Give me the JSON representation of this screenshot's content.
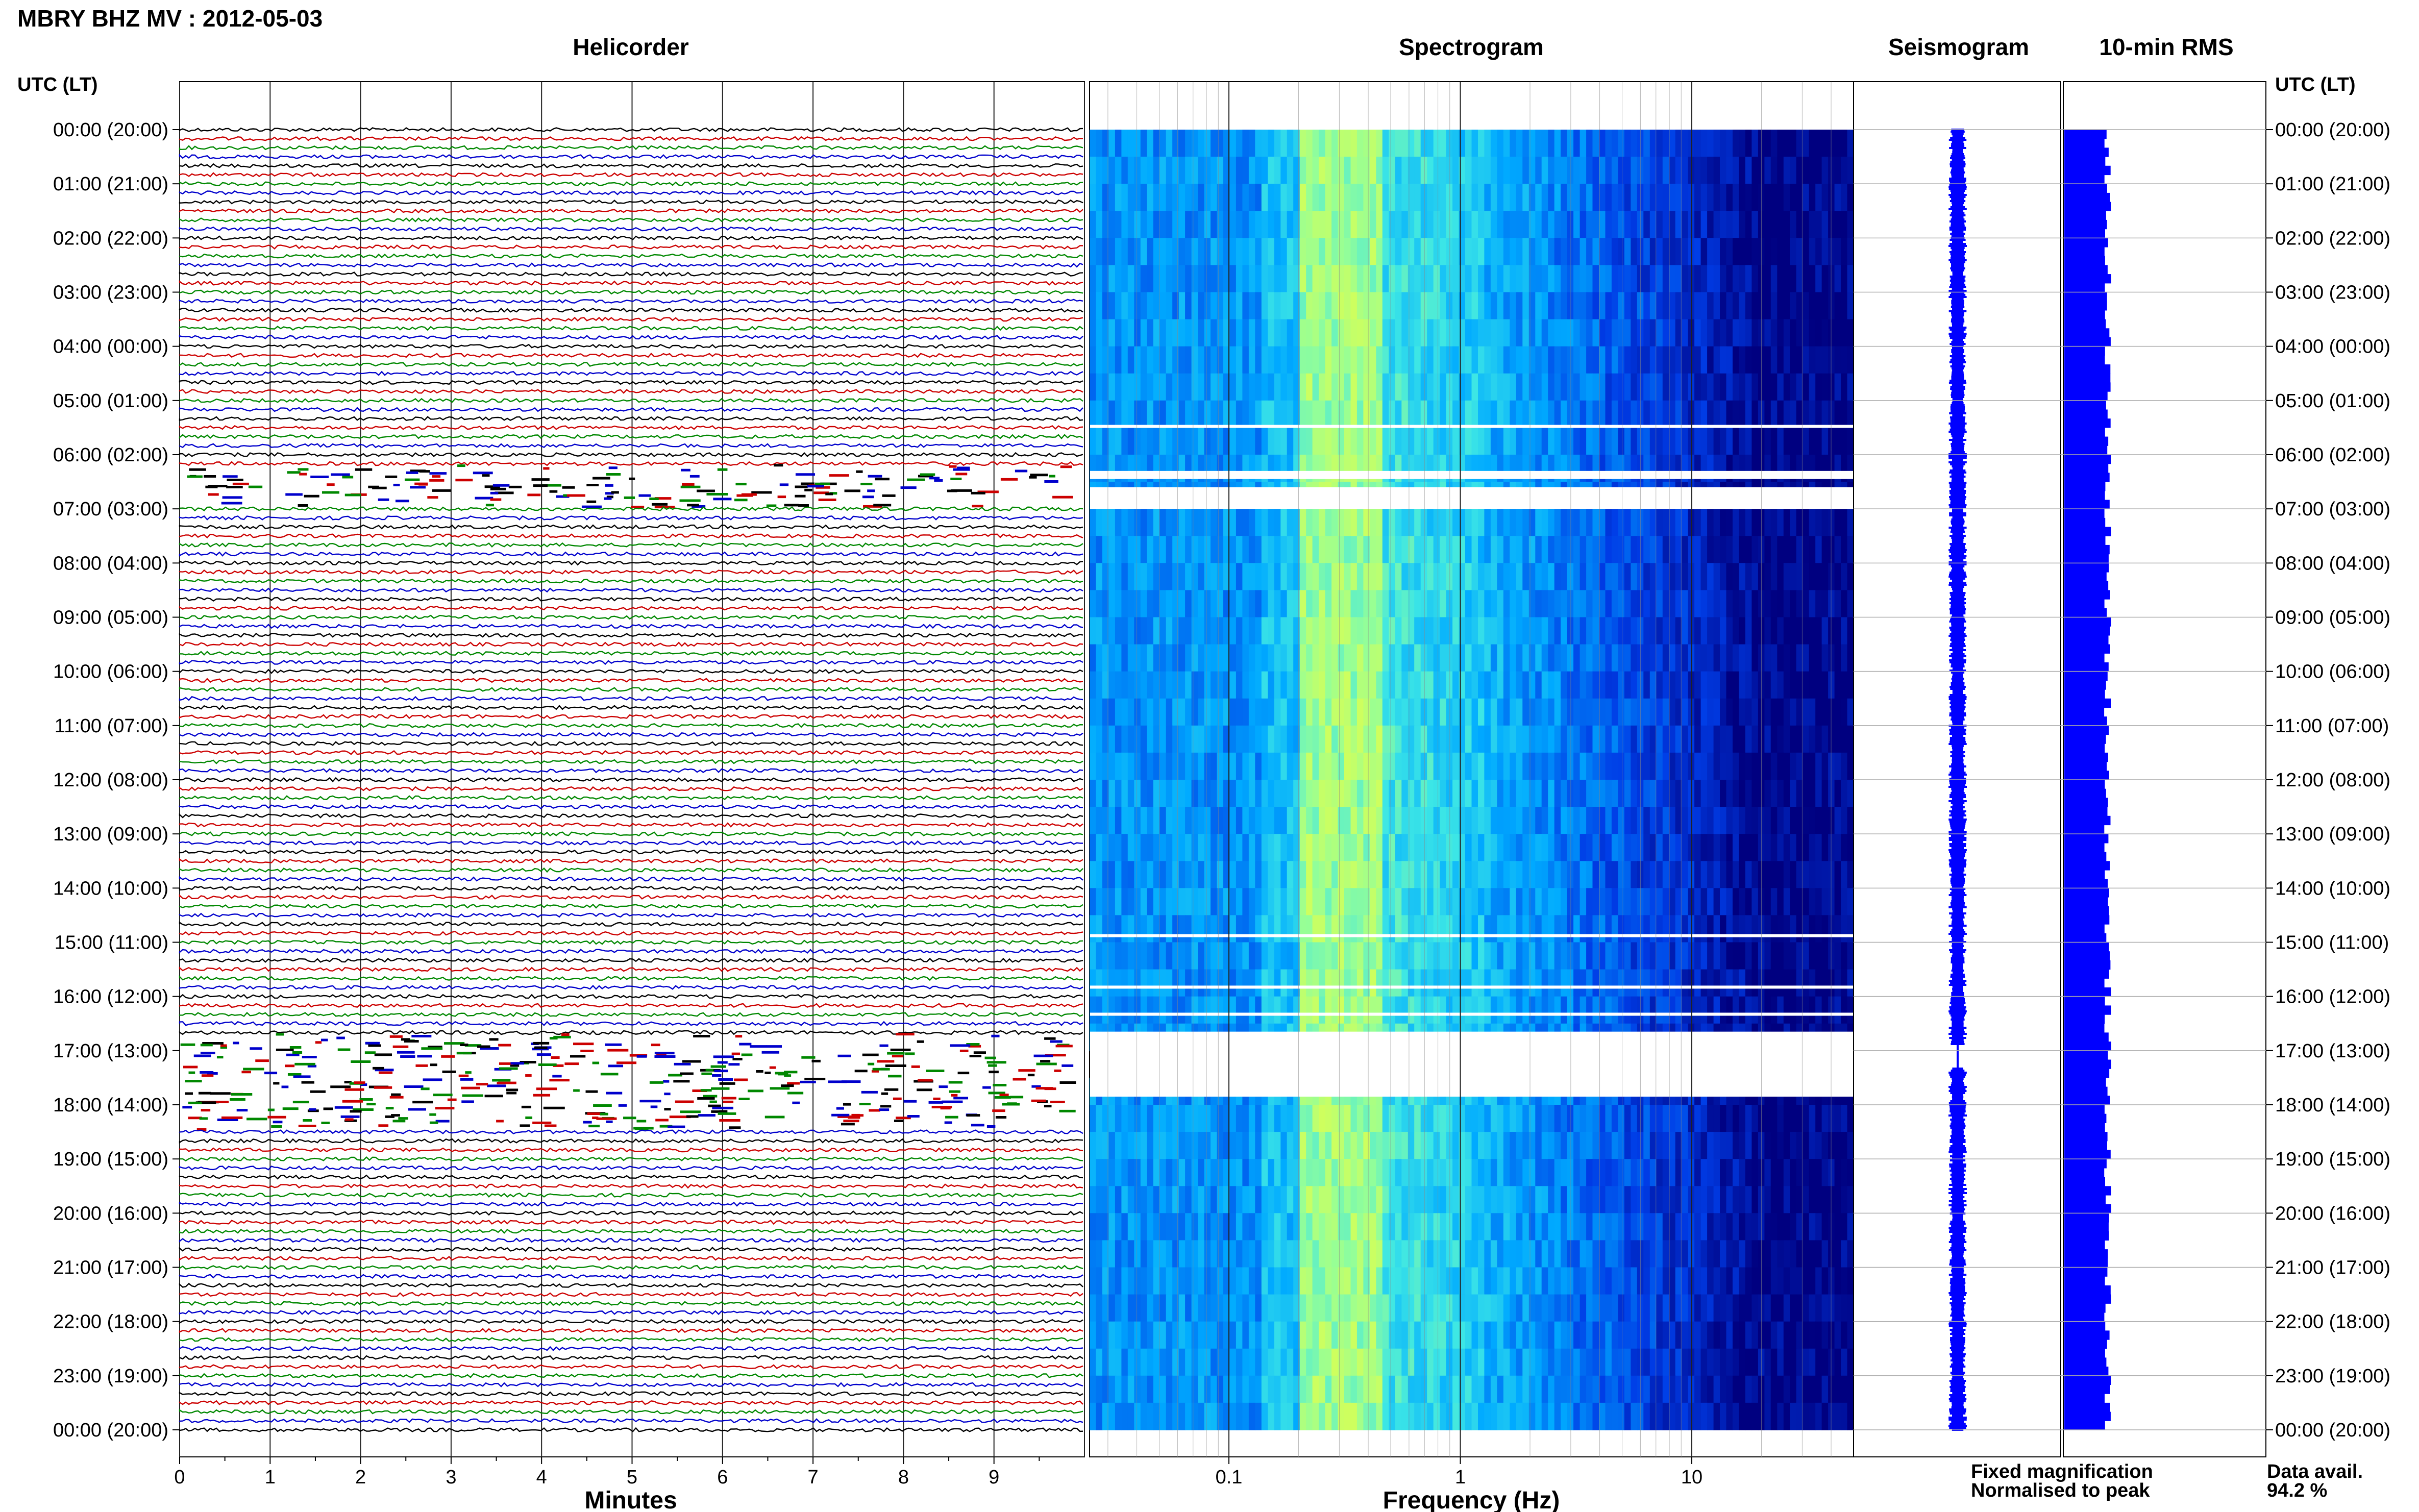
{
  "header": {
    "title": "MBRY BHZ MV : 2012-05-03",
    "panel_titles": {
      "helicorder": "Helicorder",
      "spectrogram": "Spectrogram",
      "seismogram": "Seismogram",
      "rms": "10-min RMS"
    },
    "left_axis_title": "UTC (LT)",
    "right_axis_title": "UTC (LT)"
  },
  "footer": {
    "helicorder_xlabel": "Minutes",
    "spectrogram_xlabel": "Frequency (Hz)",
    "legend_fixed": "Fixed magnification",
    "legend_normalised": "Normalised to peak",
    "data_avail_label": "Data avail.",
    "data_avail_value": "94.2 %"
  },
  "colors": {
    "fixed_magnification": "#0000ff",
    "normalised_to_peak": "#ff0000",
    "trace_palette": [
      "#000000",
      "#cc0000",
      "#008800",
      "#0000cc"
    ],
    "spectrogram_low": "#000080",
    "spectrogram_high": "#b8ff60"
  },
  "chart_data": {
    "type": "heatmap",
    "time_labels": [
      "00:00 (20:00)",
      "01:00 (21:00)",
      "02:00 (22:00)",
      "03:00 (23:00)",
      "04:00 (00:00)",
      "05:00 (01:00)",
      "06:00 (02:00)",
      "07:00 (03:00)",
      "08:00 (04:00)",
      "09:00 (05:00)",
      "10:00 (06:00)",
      "11:00 (07:00)",
      "12:00 (08:00)",
      "13:00 (09:00)",
      "14:00 (10:00)",
      "15:00 (11:00)",
      "16:00 (12:00)",
      "17:00 (13:00)",
      "18:00 (14:00)",
      "19:00 (15:00)",
      "20:00 (16:00)",
      "21:00 (17:00)",
      "22:00 (18:00)",
      "23:00 (19:00)",
      "00:00 (20:00)"
    ],
    "helicorder": {
      "xlabel": "Minutes",
      "xticks": [
        0,
        1,
        2,
        3,
        4,
        5,
        6,
        7,
        8,
        9
      ],
      "xlim": [
        0,
        10
      ],
      "traces_per_hour": 6,
      "gap_hours": [
        [
          6.3,
          7.0
        ],
        [
          16.8,
          18.4
        ]
      ]
    },
    "spectrogram": {
      "xlabel": "Frequency (Hz)",
      "xscale": "log",
      "xlim": [
        0.025,
        50
      ],
      "xticks": [
        0.1,
        1,
        10
      ],
      "gaps_hours": [
        [
          5.45,
          5.5
        ],
        [
          6.3,
          6.45
        ],
        [
          6.6,
          7.0
        ],
        [
          14.85,
          14.9
        ],
        [
          15.8,
          15.85
        ],
        [
          16.3,
          16.35
        ],
        [
          16.65,
          17.85
        ]
      ]
    },
    "seismogram": {
      "gaps_hours": [
        [
          16.9,
          17.3
        ]
      ]
    },
    "rms": {
      "coverage_hours": [
        0,
        24
      ]
    }
  }
}
